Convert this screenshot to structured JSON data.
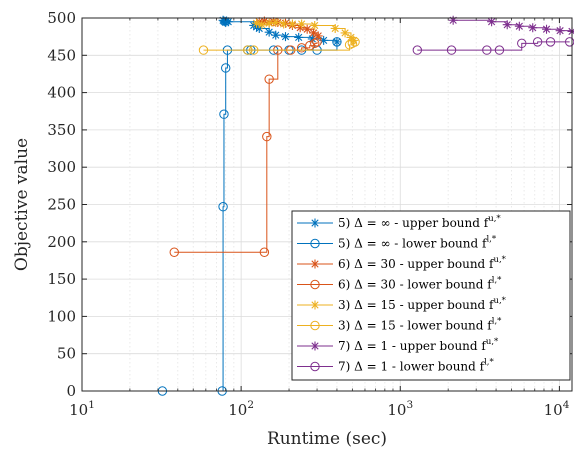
{
  "chart_data": {
    "type": "line",
    "xlabel": "Runtime (sec)",
    "ylabel": "Objective value",
    "xscale": "log",
    "xlim": [
      10,
      12000
    ],
    "ylim": [
      0,
      500
    ],
    "xticks": [
      {
        "value": 10,
        "base": "10",
        "exp": "1"
      },
      {
        "value": 100,
        "base": "10",
        "exp": "2"
      },
      {
        "value": 1000,
        "base": "10",
        "exp": "3"
      },
      {
        "value": 10000,
        "base": "10",
        "exp": "4"
      }
    ],
    "yticks": [
      0,
      50,
      100,
      150,
      200,
      250,
      300,
      350,
      400,
      450,
      500
    ],
    "grid": true,
    "legend_position": "bottom-right",
    "series": [
      {
        "name": "5) Δ = ∞ - upper bound f^{u,*}",
        "label": "5) Δ = ∞ - upper bound f",
        "sup": "u,*",
        "color": "#0072BD",
        "marker": "star",
        "x": [
          77,
          78,
          79,
          80,
          81,
          83,
          120,
          125,
          130,
          150,
          165,
          190,
          230,
          280,
          330,
          400
        ],
        "y": [
          497,
          496,
          495,
          494,
          496,
          495,
          490,
          488,
          486,
          481,
          477,
          475,
          474,
          472,
          470,
          468
        ]
      },
      {
        "name": "5) Δ = ∞ - lower bound f^{l,*}",
        "label": "5) Δ = ∞ - lower bound f",
        "sup": "l,*",
        "color": "#0072BD",
        "marker": "circle",
        "x": [
          32,
          76,
          77,
          78,
          80,
          82,
          110,
          115,
          160,
          200,
          240,
          300,
          400
        ],
        "y": [
          0,
          0,
          247,
          371,
          433,
          457,
          457,
          457,
          457,
          457,
          457,
          457,
          468
        ]
      },
      {
        "name": "6) Δ = 30 - upper bound f^{u,*}",
        "label": "6) Δ = 30 - upper bound f",
        "sup": "u,*",
        "color": "#D95319",
        "marker": "star",
        "x": [
          130,
          140,
          150,
          160,
          170,
          190,
          210,
          235,
          260,
          285,
          305
        ],
        "y": [
          495,
          496,
          494,
          495,
          494,
          493,
          490,
          487,
          485,
          480,
          476
        ]
      },
      {
        "name": "6) Δ = 30 - lower bound f^{l,*}",
        "label": "6) Δ = 30 - lower bound f",
        "sup": "l,*",
        "color": "#D95319",
        "marker": "circle",
        "x": [
          38,
          140,
          145,
          150,
          170,
          205,
          240,
          270,
          290,
          300
        ],
        "y": [
          186,
          186,
          341,
          418,
          457,
          457,
          460,
          463,
          466,
          468
        ]
      },
      {
        "name": "3) Δ = 15 - upper bound f^{u,*}",
        "label": "3) Δ = 15 - upper bound f",
        "sup": "u,*",
        "color": "#EDB120",
        "marker": "star",
        "x": [
          125,
          135,
          150,
          165,
          185,
          210,
          240,
          290,
          390,
          450,
          490,
          510
        ],
        "y": [
          493,
          491,
          493,
          494,
          492,
          492,
          492,
          490,
          486,
          480,
          474,
          470
        ]
      },
      {
        "name": "3) Δ = 15 - lower bound f^{l,*}",
        "label": "3) Δ = 15 - lower bound f",
        "sup": "l,*",
        "color": "#EDB120",
        "marker": "circle",
        "x": [
          58,
          110,
          120,
          480,
          500,
          520
        ],
        "y": [
          457,
          457,
          457,
          464,
          466,
          468
        ]
      },
      {
        "name": "7) Δ = 1 - upper bound f^{u,*}",
        "label": "7) Δ = 1 - upper bound f",
        "sup": "u,*",
        "color": "#7E2F8E",
        "marker": "star",
        "x": [
          2150,
          3750,
          4700,
          5600,
          6800,
          8300,
          10100,
          12000
        ],
        "y": [
          497,
          495,
          491,
          489,
          487,
          485,
          483,
          482
        ]
      },
      {
        "name": "7) Δ = 1 - lower bound f^{l,*}",
        "label": "7) Δ = 1 - lower bound f",
        "sup": "l,*",
        "color": "#7E2F8E",
        "marker": "circle",
        "x": [
          1280,
          2100,
          3500,
          4200,
          5800,
          7300,
          8800,
          11600
        ],
        "y": [
          457,
          457,
          457,
          457,
          466,
          468,
          468,
          468
        ]
      }
    ]
  }
}
